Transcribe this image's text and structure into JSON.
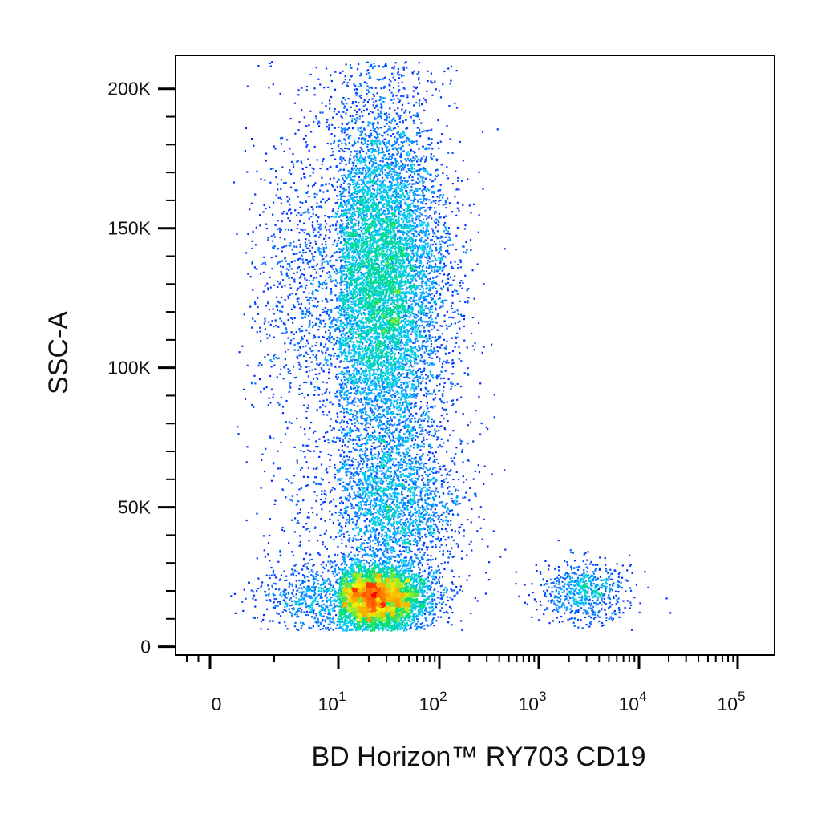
{
  "chart_data": {
    "type": "scatter",
    "subtype": "flow-cytometry-density-dot-plot",
    "title": "",
    "xlabel": "BD Horizon™ RY703 CD19",
    "ylabel": "SSC-A",
    "x_scale": "biexponential",
    "y_scale": "linear",
    "xlim": [
      -10,
      100000
    ],
    "ylim": [
      -3000,
      212000
    ],
    "grid": false,
    "legend": "none",
    "density_colormap": [
      "#0000ff",
      "#00c8ff",
      "#00e070",
      "#f0f000",
      "#ff8000",
      "#ff0000"
    ],
    "x_ticks": [
      {
        "value": 0,
        "base": "0",
        "exp": ""
      },
      {
        "value": 10,
        "base": "10",
        "exp": "1"
      },
      {
        "value": 100,
        "base": "10",
        "exp": "2"
      },
      {
        "value": 1000,
        "base": "10",
        "exp": "3"
      },
      {
        "value": 10000,
        "base": "10",
        "exp": "4"
      },
      {
        "value": 100000,
        "base": "10",
        "exp": "5"
      }
    ],
    "y_ticks": [
      {
        "value": 0,
        "label": "0"
      },
      {
        "value": 50000,
        "label": "50K"
      },
      {
        "value": 100000,
        "label": "100K"
      },
      {
        "value": 150000,
        "label": "150K"
      },
      {
        "value": 200000,
        "label": "200K"
      }
    ],
    "populations": [
      {
        "x_center": 25,
        "x_spread_decades": 0.33,
        "y_center": 130000,
        "y_spread": 33000,
        "events": 9500
      },
      {
        "x_center": 22,
        "x_spread_decades": 0.28,
        "y_center": 18000,
        "y_spread": 6000,
        "events": 5200
      },
      {
        "x_center": 35,
        "x_spread_decades": 0.35,
        "y_center": 50000,
        "y_spread": 15000,
        "events": 2200
      },
      {
        "x_center": 2800,
        "x_spread_decades": 0.22,
        "y_center": 20000,
        "y_spread": 6000,
        "events": 650
      }
    ]
  }
}
